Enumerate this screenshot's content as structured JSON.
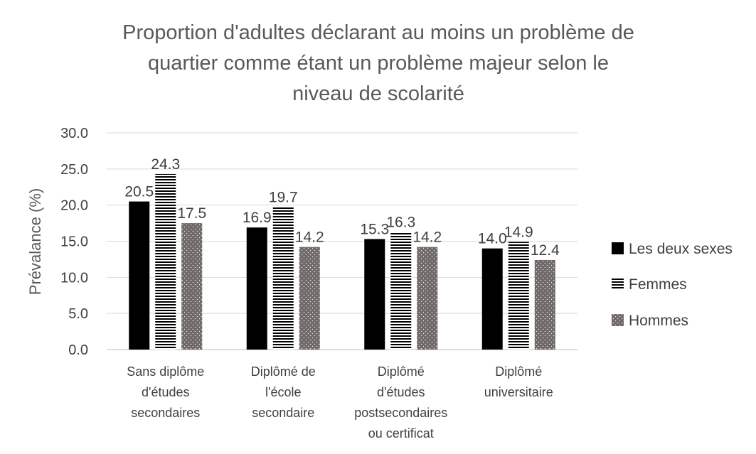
{
  "chart_data": {
    "type": "bar",
    "title_lines": [
      "Proportion d'adultes déclarant au moins un problème de",
      "quartier comme étant un problème majeur selon le",
      "niveau de scolarité"
    ],
    "ylabel": "Prévalance (%)",
    "ylim": [
      0,
      30
    ],
    "yticks": [
      "0.0",
      "5.0",
      "10.0",
      "15.0",
      "20.0",
      "25.0",
      "30.0"
    ],
    "categories": [
      [
        "Sans diplôme",
        "d'études",
        "secondaires"
      ],
      [
        "Diplômé de",
        "l'école",
        "secondaire"
      ],
      [
        "Diplômé",
        "d'études",
        "postsecondaires",
        "ou certificat"
      ],
      [
        "Diplômé",
        "universitaire"
      ]
    ],
    "series": [
      {
        "name": "Les deux sexes",
        "values": [
          20.5,
          16.9,
          15.3,
          14.0
        ],
        "labels": [
          "20.5",
          "16.9",
          "15.3",
          "14.0"
        ],
        "color": "#000000",
        "pattern": "solid"
      },
      {
        "name": "Femmes",
        "values": [
          24.3,
          19.7,
          16.3,
          14.9
        ],
        "labels": [
          "24.3",
          "19.7",
          "16.3",
          "14.9"
        ],
        "color": "#000000",
        "pattern": "horizontal-stripes"
      },
      {
        "name": "Hommes",
        "values": [
          17.5,
          14.2,
          14.2,
          12.4
        ],
        "labels": [
          "17.5",
          "14.2",
          "14.2",
          "12.4"
        ],
        "color": "#6e6867",
        "pattern": "dotted"
      }
    ],
    "grid": true,
    "legend_position": "right"
  }
}
